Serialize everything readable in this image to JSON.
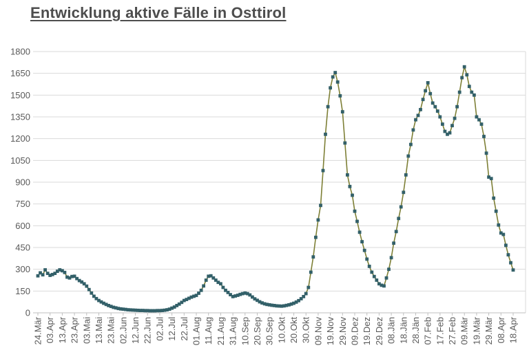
{
  "title": "Entwicklung aktive Fälle in Osttirol",
  "colors": {
    "background": "#ffffff",
    "grid": "#d9d9d9",
    "axis": "#bfbfbf",
    "tick_text": "#595959",
    "title_text": "#4d4d4d",
    "line": "#7d7f35",
    "marker": "#336069"
  },
  "chart_data": {
    "type": "line",
    "title": "Entwicklung aktive Fälle in Osttirol",
    "xlabel": "",
    "ylabel": "",
    "ylim": [
      0,
      1800
    ],
    "ytick_step": 150,
    "ytick_labels": [
      "0",
      "150",
      "300",
      "450",
      "600",
      "750",
      "900",
      "1050",
      "1200",
      "1350",
      "1500",
      "1650",
      "1800"
    ],
    "xtick_labels": [
      "24.Mär",
      "03.Apr",
      "13.Apr",
      "23.Apr",
      "03.Mai",
      "13.Mai",
      "23.Mai",
      "02.Jun",
      "12.Jun",
      "22.Jun",
      "02.Jul",
      "12.Jul",
      "22.Jul",
      "01.Aug",
      "11.Aug",
      "21.Aug",
      "31.Aug",
      "10.Sep",
      "20.Sep",
      "30.Sep",
      "10.Okt",
      "20.Okt",
      "30.Okt",
      "09.Nov",
      "19.Nov",
      "29.Nov",
      "09.Dez",
      "19.Dez",
      "29.Dez",
      "08.Jän",
      "18.Jän",
      "28.Jän",
      "07.Feb",
      "17.Feb",
      "27.Feb",
      "09.Mär",
      "19.Mär",
      "29.Mär",
      "08.Apr",
      "18.Apr"
    ],
    "xtick_interval_days": 10,
    "grid": true,
    "legend_position": "none",
    "series": [
      {
        "name": "aktive Fälle",
        "marker": "square",
        "marker_color": "#336069",
        "line_color": "#7d7f35",
        "x_start_label": "24.Mär",
        "x_step_days": 2,
        "values": [
          255,
          275,
          262,
          296,
          272,
          258,
          264,
          272,
          286,
          296,
          290,
          278,
          246,
          240,
          250,
          252,
          236,
          222,
          212,
          200,
          184,
          160,
          136,
          114,
          98,
          85,
          75,
          66,
          58,
          50,
          44,
          38,
          34,
          30,
          27,
          25,
          23,
          21,
          20,
          19,
          18,
          17,
          16,
          16,
          15,
          15,
          14,
          14,
          14,
          15,
          15,
          16,
          18,
          21,
          25,
          32,
          40,
          50,
          60,
          72,
          85,
          92,
          100,
          108,
          114,
          120,
          135,
          155,
          185,
          225,
          252,
          255,
          240,
          225,
          210,
          200,
          175,
          155,
          140,
          125,
          112,
          116,
          121,
          127,
          132,
          136,
          132,
          123,
          109,
          96,
          86,
          76,
          68,
          62,
          58,
          55,
          52,
          50,
          48,
          47,
          46,
          48,
          51,
          55,
          60,
          66,
          74,
          84,
          97,
          112,
          132,
          175,
          280,
          385,
          520,
          640,
          740,
          980,
          1230,
          1420,
          1550,
          1625,
          1655,
          1590,
          1495,
          1385,
          1170,
          950,
          870,
          810,
          700,
          630,
          555,
          490,
          430,
          370,
          320,
          280,
          250,
          225,
          200,
          190,
          185,
          240,
          300,
          380,
          480,
          560,
          650,
          730,
          830,
          950,
          1080,
          1160,
          1260,
          1330,
          1360,
          1400,
          1470,
          1530,
          1585,
          1510,
          1445,
          1420,
          1390,
          1350,
          1300,
          1250,
          1230,
          1240,
          1290,
          1340,
          1420,
          1520,
          1620,
          1695,
          1640,
          1560,
          1520,
          1500,
          1350,
          1330,
          1300,
          1215,
          1100,
          935,
          925,
          790,
          700,
          605,
          550,
          540,
          465,
          400,
          345,
          295
        ]
      }
    ]
  }
}
